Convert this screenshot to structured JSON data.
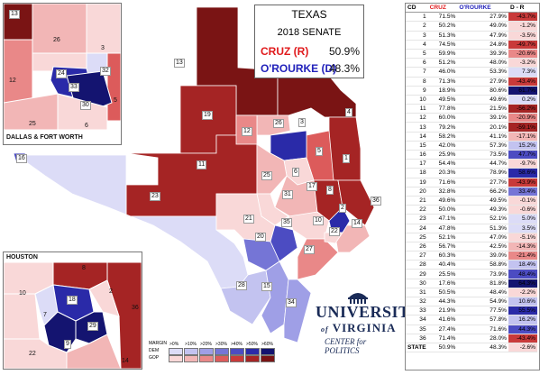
{
  "title": {
    "state": "TEXAS",
    "race": "2018 SENATE",
    "gop_candidate": "CRUZ (R)",
    "gop_pct": "50.9%",
    "dem_candidate": "O'ROURKE (D)",
    "dem_pct": "48.3%"
  },
  "insets": {
    "dfw_label": "DALLAS & FORT WORTH",
    "houston_label": "HOUSTON"
  },
  "legend": {
    "margin_label": "MARGIN",
    "dem_label": "DEM",
    "gop_label": "GOP",
    "bins": [
      ">0%",
      ">10%",
      ">20%",
      ">30%",
      ">40%",
      ">50%",
      ">60%"
    ],
    "dem_colors": [
      "#dcdcf7",
      "#c3c3f0",
      "#9f9fe6",
      "#7575d6",
      "#4c4cc2",
      "#2a2aa8",
      "#141470"
    ],
    "gop_colors": [
      "#f9d8d8",
      "#f2b6b6",
      "#e98888",
      "#dc5b5b",
      "#c93a3a",
      "#a52424",
      "#7a1414"
    ]
  },
  "logo": {
    "line1": "UNIVERSITY",
    "line2": "VIRGINIA",
    "of": "of",
    "line3": "CENTER for POLITICS"
  },
  "table": {
    "headers": {
      "cd": "CD",
      "cruz": "CRUZ",
      "orourke": "O'ROURKE",
      "dr": "D - R"
    },
    "rows": [
      {
        "cd": "1",
        "cruz": "71.5%",
        "orourke": "27.9%",
        "dr": "-43.7%"
      },
      {
        "cd": "2",
        "cruz": "50.2%",
        "orourke": "49.0%",
        "dr": "-1.2%"
      },
      {
        "cd": "3",
        "cruz": "51.3%",
        "orourke": "47.9%",
        "dr": "-3.5%"
      },
      {
        "cd": "4",
        "cruz": "74.5%",
        "orourke": "24.8%",
        "dr": "-49.7%"
      },
      {
        "cd": "5",
        "cruz": "59.9%",
        "orourke": "39.3%",
        "dr": "-20.6%"
      },
      {
        "cd": "6",
        "cruz": "51.2%",
        "orourke": "48.0%",
        "dr": "-3.2%"
      },
      {
        "cd": "7",
        "cruz": "46.0%",
        "orourke": "53.3%",
        "dr": "7.3%"
      },
      {
        "cd": "8",
        "cruz": "71.3%",
        "orourke": "27.9%",
        "dr": "-43.4%"
      },
      {
        "cd": "9",
        "cruz": "18.9%",
        "orourke": "80.6%",
        "dr": "61.7%"
      },
      {
        "cd": "10",
        "cruz": "49.5%",
        "orourke": "49.6%",
        "dr": "0.2%"
      },
      {
        "cd": "11",
        "cruz": "77.8%",
        "orourke": "21.5%",
        "dr": "-56.2%"
      },
      {
        "cd": "12",
        "cruz": "60.0%",
        "orourke": "39.1%",
        "dr": "-20.9%"
      },
      {
        "cd": "13",
        "cruz": "79.2%",
        "orourke": "20.1%",
        "dr": "-59.1%"
      },
      {
        "cd": "14",
        "cruz": "58.2%",
        "orourke": "41.1%",
        "dr": "-17.1%"
      },
      {
        "cd": "15",
        "cruz": "42.0%",
        "orourke": "57.3%",
        "dr": "15.2%"
      },
      {
        "cd": "16",
        "cruz": "25.9%",
        "orourke": "73.5%",
        "dr": "47.7%"
      },
      {
        "cd": "17",
        "cruz": "54.4%",
        "orourke": "44.7%",
        "dr": "-9.7%"
      },
      {
        "cd": "18",
        "cruz": "20.3%",
        "orourke": "78.9%",
        "dr": "58.6%"
      },
      {
        "cd": "19",
        "cruz": "71.6%",
        "orourke": "27.7%",
        "dr": "-43.9%"
      },
      {
        "cd": "20",
        "cruz": "32.8%",
        "orourke": "66.2%",
        "dr": "33.4%"
      },
      {
        "cd": "21",
        "cruz": "49.6%",
        "orourke": "49.5%",
        "dr": "-0.1%"
      },
      {
        "cd": "22",
        "cruz": "50.0%",
        "orourke": "49.3%",
        "dr": "-0.6%"
      },
      {
        "cd": "23",
        "cruz": "47.1%",
        "orourke": "52.1%",
        "dr": "5.0%"
      },
      {
        "cd": "24",
        "cruz": "47.8%",
        "orourke": "51.3%",
        "dr": "3.5%"
      },
      {
        "cd": "25",
        "cruz": "52.1%",
        "orourke": "47.0%",
        "dr": "-5.1%"
      },
      {
        "cd": "26",
        "cruz": "56.7%",
        "orourke": "42.5%",
        "dr": "-14.3%"
      },
      {
        "cd": "27",
        "cruz": "60.3%",
        "orourke": "39.0%",
        "dr": "-21.4%"
      },
      {
        "cd": "28",
        "cruz": "40.4%",
        "orourke": "58.8%",
        "dr": "18.4%"
      },
      {
        "cd": "29",
        "cruz": "25.5%",
        "orourke": "73.9%",
        "dr": "48.4%"
      },
      {
        "cd": "30",
        "cruz": "17.6%",
        "orourke": "81.8%",
        "dr": "64.3%"
      },
      {
        "cd": "31",
        "cruz": "50.5%",
        "orourke": "48.4%",
        "dr": "-2.2%"
      },
      {
        "cd": "32",
        "cruz": "44.3%",
        "orourke": "54.9%",
        "dr": "10.6%"
      },
      {
        "cd": "33",
        "cruz": "21.9%",
        "orourke": "77.5%",
        "dr": "55.5%"
      },
      {
        "cd": "34",
        "cruz": "41.6%",
        "orourke": "57.8%",
        "dr": "16.2%"
      },
      {
        "cd": "35",
        "cruz": "27.4%",
        "orourke": "71.6%",
        "dr": "44.3%"
      },
      {
        "cd": "36",
        "cruz": "71.4%",
        "orourke": "28.0%",
        "dr": "-43.4%"
      },
      {
        "cd": "STATE",
        "cruz": "50.9%",
        "orourke": "48.3%",
        "dr": "-2.6%"
      }
    ]
  },
  "map_labels": {
    "main": [
      "13",
      "19",
      "11",
      "4",
      "1",
      "5",
      "3",
      "26",
      "12",
      "17",
      "8",
      "31",
      "10",
      "2",
      "36",
      "25",
      "6",
      "21",
      "35",
      "23",
      "20",
      "28",
      "15",
      "34",
      "27",
      "14",
      "22",
      "16",
      "24",
      "32",
      "33",
      "30",
      "9",
      "18",
      "7",
      "29"
    ],
    "dfw": [
      "13",
      "26",
      "3",
      "12",
      "24",
      "33",
      "32",
      "30",
      "6",
      "25",
      "5"
    ],
    "houston": [
      "8",
      "10",
      "2",
      "36",
      "18",
      "7",
      "29",
      "9",
      "22",
      "14"
    ]
  },
  "colors": {
    "cruz_red": "#e0191b",
    "orourke_blue": "#2222bb"
  }
}
